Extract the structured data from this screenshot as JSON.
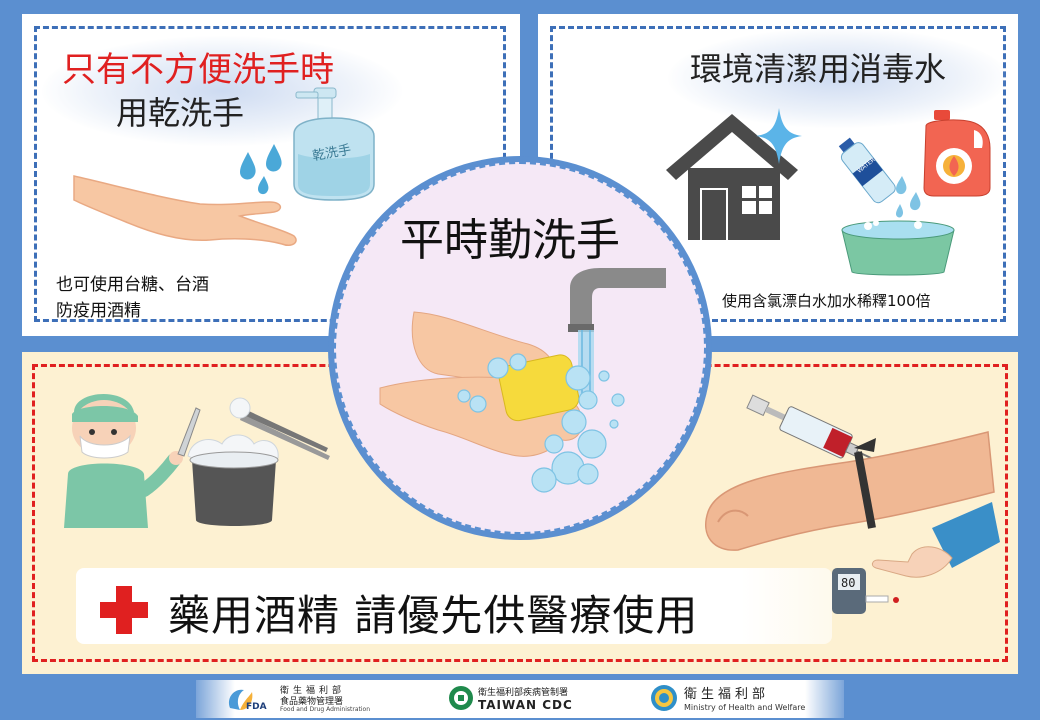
{
  "left_panel": {
    "headline": "只有不方便洗手時",
    "subheadline": "用乾洗手",
    "bottle_label": "乾洗手",
    "note_line1": "也可使用台糖、台酒",
    "note_line2": "防疫用酒精"
  },
  "right_panel": {
    "headline": "環境清潔用消毒水",
    "note": "使用含氯漂白水加水稀釋100倍",
    "bottle_label": "WATER"
  },
  "center": {
    "title": "平時勤洗手"
  },
  "bottom_panel": {
    "banner_text": "藥用酒精 請優先供醫療使用",
    "meter_reading": "80"
  },
  "footer": {
    "fda_name": "衛生福利部",
    "fda_line2": "食品藥物管理署",
    "fda_en": "Food and Drug Administration",
    "fda_abbr": "FDA",
    "cdc_name": "衛生福利部疾病管制署",
    "cdc_en": "TAIWAN CDC",
    "mohw_name": "衛生福利部",
    "mohw_en": "Ministry of Health and Welfare"
  },
  "colors": {
    "background": "#5b8fd0",
    "red": "#e02020",
    "dash_blue": "#3d6fb8",
    "cream": "#fdf1d2",
    "center_circle": "#f5e8f6"
  }
}
